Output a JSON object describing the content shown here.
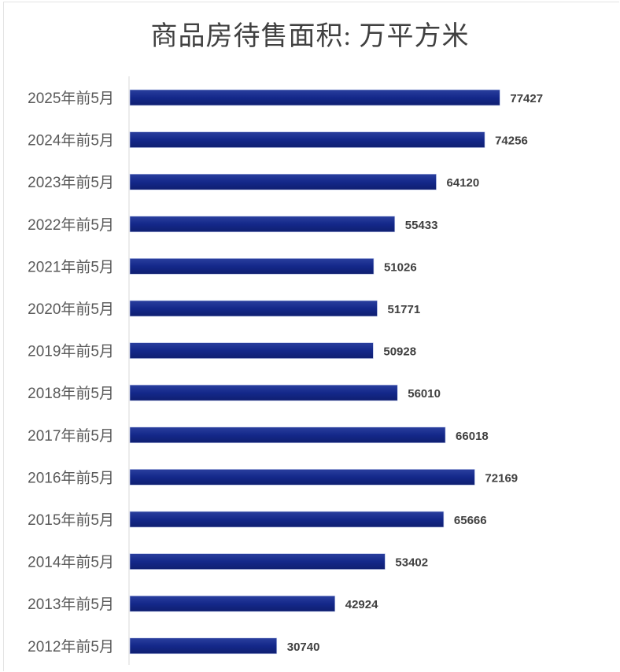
{
  "chart_data": {
    "type": "bar",
    "orientation": "horizontal",
    "title": "商品房待售面积: 万平方米",
    "categories": [
      "2025年前5月",
      "2024年前5月",
      "2023年前5月",
      "2022年前5月",
      "2021年前5月",
      "2020年前5月",
      "2019年前5月",
      "2018年前5月",
      "2017年前5月",
      "2016年前5月",
      "2015年前5月",
      "2014年前5月",
      "2013年前5月",
      "2012年前5月"
    ],
    "values": [
      77427,
      74256,
      64120,
      55433,
      51026,
      51771,
      50928,
      56010,
      66018,
      72169,
      65666,
      53402,
      42924,
      30740
    ],
    "xlim": [
      0,
      80000
    ],
    "grid": false,
    "data_labels": true,
    "bar_color": "#14288a",
    "label_color": "#404040"
  }
}
